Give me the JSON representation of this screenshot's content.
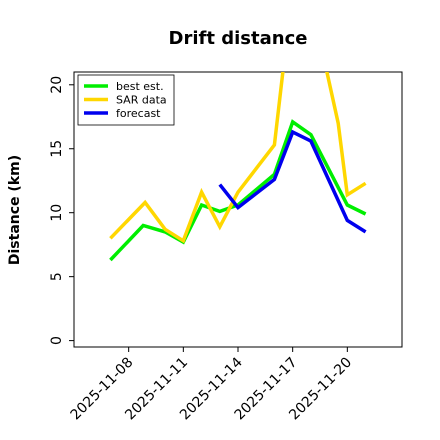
{
  "chart_data": {
    "type": "line",
    "title": "Drift distance",
    "xlabel": "",
    "ylabel": "Distance (km)",
    "ylim": [
      -0.5,
      21
    ],
    "xlim": [
      "2025-11-05",
      "2025-11-23"
    ],
    "x_ticks": [
      "2025-11-08",
      "2025-11-11",
      "2025-11-14",
      "2025-11-17",
      "2025-11-20"
    ],
    "y_ticks": [
      0,
      5,
      10,
      15,
      20
    ],
    "grid": false,
    "legend_position": "top-left",
    "series": [
      {
        "name": "best est.",
        "color": "#00ee00",
        "x": [
          "2025-11-07",
          "2025-11-08.8",
          "2025-11-10",
          "2025-11-11",
          "2025-11-12",
          "2025-11-13",
          "2025-11-14",
          "2025-11-16",
          "2025-11-17",
          "2025-11-18",
          "2025-11-20",
          "2025-11-21"
        ],
        "y": [
          6.3,
          9.0,
          8.5,
          7.7,
          10.6,
          10.1,
          10.6,
          13.0,
          17.1,
          16.1,
          10.6,
          9.9
        ]
      },
      {
        "name": "SAR data",
        "color": "#ffd700",
        "x": [
          "2025-11-07",
          "2025-11-08.9",
          "2025-11-10",
          "2025-11-11",
          "2025-11-12",
          "2025-11-13",
          "2025-11-14",
          "2025-11-16",
          "2025-11-16.5",
          "2025-11-18.8",
          "2025-11-19.5",
          "2025-11-20",
          "2025-11-21"
        ],
        "y": [
          8.0,
          10.8,
          8.7,
          7.8,
          11.6,
          8.9,
          11.6,
          15.3,
          21.5,
          21.5,
          17.0,
          11.4,
          12.3
        ]
      },
      {
        "name": "forecast",
        "color": "#0000ee",
        "x": [
          "2025-11-13",
          "2025-11-14",
          "2025-11-16",
          "2025-11-17",
          "2025-11-18",
          "2025-11-20",
          "2025-11-21"
        ],
        "y": [
          12.2,
          10.4,
          12.6,
          16.3,
          15.6,
          9.4,
          8.5
        ]
      }
    ]
  }
}
